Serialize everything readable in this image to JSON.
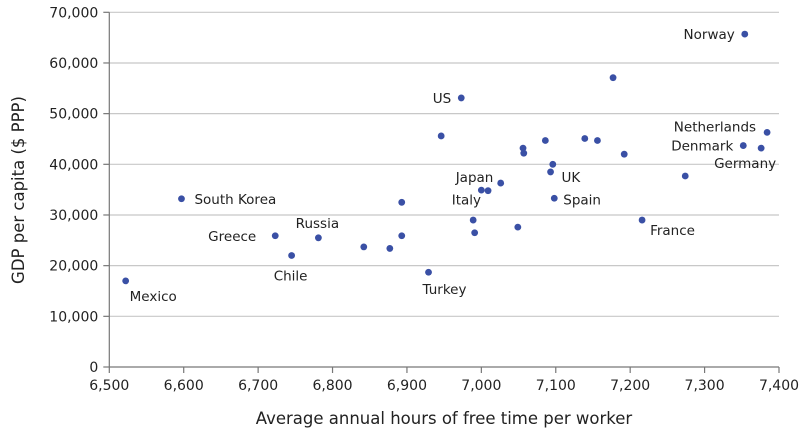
{
  "chart_data": {
    "type": "scatter",
    "title": "",
    "xlabel": "Average annual hours of free time per worker",
    "ylabel": "GDP per capita ($ PPP)",
    "xlim": [
      6500,
      7400
    ],
    "ylim": [
      0,
      70000
    ],
    "x_ticks": [
      "6,500",
      "6,600",
      "6,700",
      "6,800",
      "6,900",
      "7,000",
      "7,100",
      "7,200",
      "7,300",
      "7,400"
    ],
    "y_ticks": [
      "0",
      "10,000",
      "20,000",
      "30,000",
      "40,000",
      "50,000",
      "60,000",
      "70,000"
    ],
    "grid": "horizontal",
    "point_color": "#3a50a5",
    "points": [
      {
        "x": 6522,
        "y": 17000,
        "label": "Mexico"
      },
      {
        "x": 6597,
        "y": 33200,
        "label": "South Korea"
      },
      {
        "x": 6723,
        "y": 25900,
        "label": "Greece"
      },
      {
        "x": 6745,
        "y": 22000,
        "label": "Chile"
      },
      {
        "x": 6781,
        "y": 25500,
        "label": "Russia"
      },
      {
        "x": 6842,
        "y": 23700,
        "label": ""
      },
      {
        "x": 6877,
        "y": 23400,
        "label": ""
      },
      {
        "x": 6893,
        "y": 32500,
        "label": ""
      },
      {
        "x": 6893,
        "y": 25900,
        "label": ""
      },
      {
        "x": 6929,
        "y": 18700,
        "label": "Turkey"
      },
      {
        "x": 6946,
        "y": 45600,
        "label": ""
      },
      {
        "x": 6973,
        "y": 53100,
        "label": "US"
      },
      {
        "x": 6989,
        "y": 29000,
        "label": ""
      },
      {
        "x": 6991,
        "y": 26500,
        "label": ""
      },
      {
        "x": 7000,
        "y": 34900,
        "label": "Japan"
      },
      {
        "x": 7009,
        "y": 34800,
        "label": "Italy"
      },
      {
        "x": 7026,
        "y": 36300,
        "label": ""
      },
      {
        "x": 7049,
        "y": 27600,
        "label": ""
      },
      {
        "x": 7056,
        "y": 43200,
        "label": ""
      },
      {
        "x": 7057,
        "y": 42200,
        "label": ""
      },
      {
        "x": 7086,
        "y": 44700,
        "label": ""
      },
      {
        "x": 7093,
        "y": 38500,
        "label": "UK"
      },
      {
        "x": 7096,
        "y": 40000,
        "label": ""
      },
      {
        "x": 7098,
        "y": 33300,
        "label": "Spain"
      },
      {
        "x": 7139,
        "y": 45100,
        "label": ""
      },
      {
        "x": 7156,
        "y": 44700,
        "label": ""
      },
      {
        "x": 7177,
        "y": 57100,
        "label": ""
      },
      {
        "x": 7192,
        "y": 42000,
        "label": ""
      },
      {
        "x": 7216,
        "y": 29000,
        "label": "France"
      },
      {
        "x": 7274,
        "y": 37700,
        "label": ""
      },
      {
        "x": 7352,
        "y": 43700,
        "label": "Denmark"
      },
      {
        "x": 7354,
        "y": 65700,
        "label": "Norway"
      },
      {
        "x": 7376,
        "y": 43200,
        "label": "Germany"
      },
      {
        "x": 7384,
        "y": 46300,
        "label": "Netherlands"
      }
    ]
  }
}
